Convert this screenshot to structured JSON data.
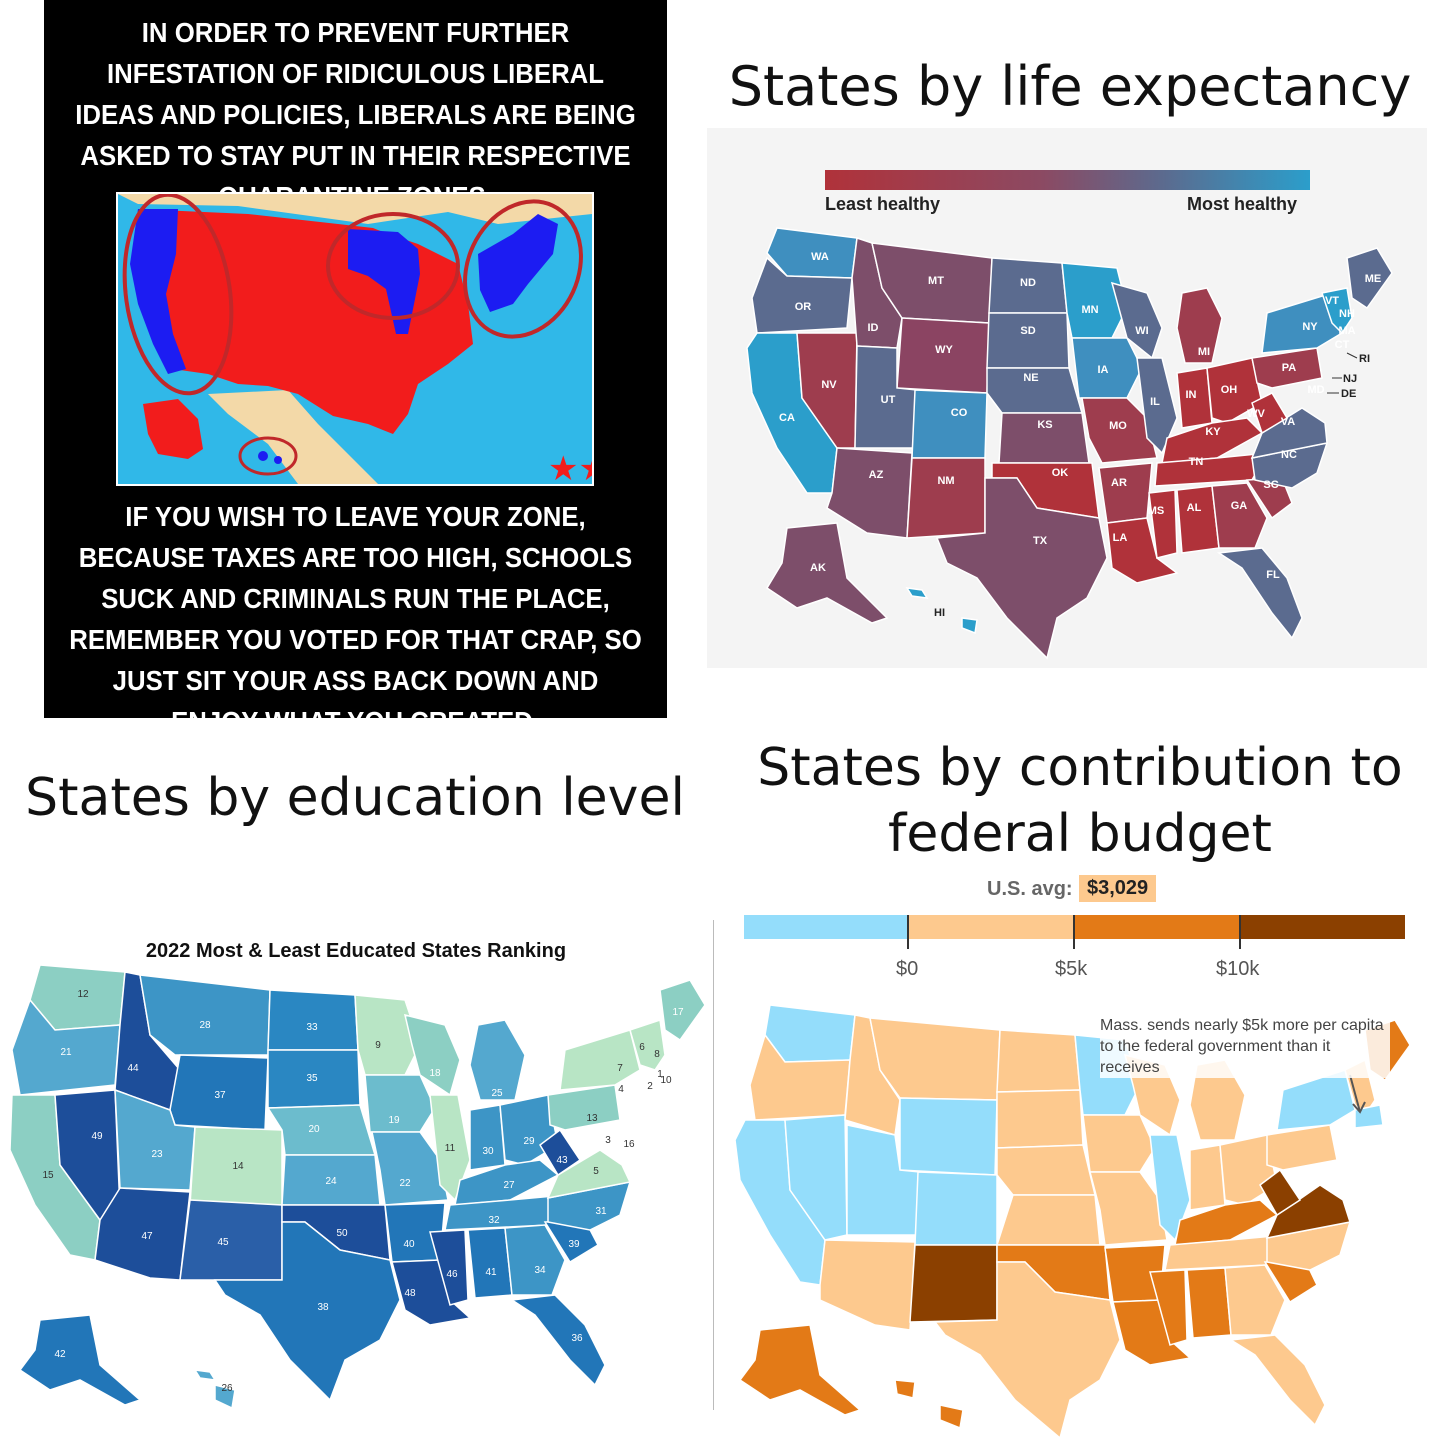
{
  "meme": {
    "top_text": "IN ORDER TO PREVENT FURTHER INFESTATION OF RIDICULOUS LIBERAL IDEAS AND POLICIES, LIBERALS ARE BEING ASKED TO STAY PUT IN THEIR RESPECTIVE QUARANTINE ZONES.",
    "bottom_text": "IF YOU WISH TO LEAVE YOUR ZONE, BECAUSE TAXES ARE TOO HIGH, SCHOOLS SUCK AND CRIMINALS RUN THE PLACE, REMEMBER YOU VOTED FOR THAT CRAP, SO JUST SIT YOUR ASS BACK DOWN AND ENJOY WHAT YOU CREATED.",
    "colors": {
      "red": "#f21c1c",
      "blue": "#1c1cf2",
      "ocean": "#30b8e8",
      "land": "#f3d9a8",
      "ring": "#c0282a"
    }
  },
  "life": {
    "title": "States by life expectancy",
    "legend_low": "Least healthy",
    "legend_high": "Most healthy",
    "colors": {
      "least": "#b0323a",
      "mid": "#7d4e6a",
      "slate": "#5b6b8f",
      "most": "#2b9ecb"
    },
    "labels": {
      "WA": "WA",
      "OR": "OR",
      "CA": "CA",
      "NV": "NV",
      "ID": "ID",
      "MT": "MT",
      "WY": "WY",
      "UT": "UT",
      "AZ": "AZ",
      "CO": "CO",
      "NM": "NM",
      "ND": "ND",
      "SD": "SD",
      "NE": "NE",
      "KS": "KS",
      "OK": "OK",
      "TX": "TX",
      "MN": "MN",
      "IA": "IA",
      "MO": "MO",
      "AR": "AR",
      "LA": "LA",
      "WI": "WI",
      "IL": "IL",
      "MI": "MI",
      "IN": "IN",
      "OH": "OH",
      "KY": "KY",
      "TN": "TN",
      "MS": "MS",
      "AL": "AL",
      "GA": "GA",
      "FL": "FL",
      "SC": "SC",
      "NC": "NC",
      "VA": "VA",
      "WV": "WV",
      "PA": "PA",
      "NY": "NY",
      "ME": "ME",
      "VT": "VT",
      "NH": "NH",
      "MA": "MA",
      "CT": "CT",
      "RI": "RI",
      "NJ": "NJ",
      "DE": "DE",
      "MD": "MD",
      "AK": "AK",
      "HI": "HI"
    }
  },
  "edu": {
    "title": "States by education level",
    "subtitle": "2022 Most & Least Educated States Ranking",
    "colors": {
      "top": "#b8e5c5",
      "high": "#8ccfc3",
      "mid": "#54a8cf",
      "low": "#2276b8",
      "bottom": "#1d4e9a"
    },
    "ranks": {
      "WA": "12",
      "OR": "21",
      "CA": "15",
      "NV": "49",
      "ID": "44",
      "MT": "28",
      "WY": "37",
      "UT": "23",
      "AZ": "47",
      "CO": "14",
      "NM": "45",
      "ND": "33",
      "SD": "35",
      "NE": "20",
      "KS": "24",
      "OK": "50",
      "TX": "38",
      "MN": "9",
      "IA": "19",
      "MO": "22",
      "AR": "40",
      "LA": "48",
      "WI": "18",
      "IL": "11",
      "MI": "25",
      "IN": "30",
      "OH": "29",
      "KY": "27",
      "TN": "32",
      "MS": "46",
      "AL": "41",
      "GA": "34",
      "FL": "36",
      "SC": "39",
      "NC": "31",
      "VA": "5",
      "WV": "43",
      "PA": "13",
      "NY": "7",
      "ME": "17",
      "VT": "6",
      "NH": "8",
      "MA": "1",
      "CT": "10",
      "RI": "2",
      "NJ": "4",
      "DE": "16",
      "MD": "3",
      "AK": "42",
      "HI": "26"
    }
  },
  "fed": {
    "title": "States by contribution to federal budget",
    "avg_label": "U.S. avg:",
    "avg_value": "$3,029",
    "ticks": [
      "$0",
      "$5k",
      "$10k"
    ],
    "note": "Mass. sends nearly $5k more per capita to the federal government than it receives",
    "colors": {
      "neg": "#94ddfb",
      "low": "#fdc98e",
      "mid": "#e37a17",
      "high": "#8b4000"
    }
  }
}
